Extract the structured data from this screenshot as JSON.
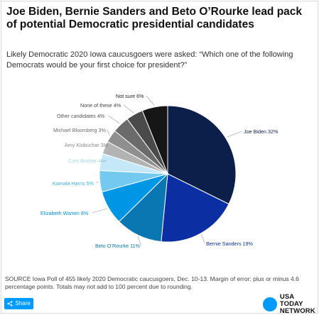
{
  "title": "Joe Biden, Bernie Sanders and Beto O’Rourke lead pack of potential Democratic presidential candidates",
  "subtitle": "Likely Democratic 2020 Iowa caucusgoers were asked: “Which one of the following Democrats would be your first choice for president?”",
  "source": "SOURCE Iowa Poll of 455 likely 2020 Democratic caucusgoers, Dec. 10-13. Margin of error: plus or minus 4.6 percentage points. Totals may not add to 100 percent due to rounding.",
  "share": {
    "label": "Share",
    "icon": "share-icon"
  },
  "brand": {
    "line1": "USA TODAY",
    "line2": "NETWORK",
    "color": "#009bff"
  },
  "chart_data": {
    "type": "pie",
    "title": "",
    "start": "12 o'clock, clockwise",
    "slices": [
      {
        "label": "Joe Biden",
        "value": 32,
        "display": "Joe Biden 32%",
        "color": "#0c1f4a"
      },
      {
        "label": "Bernie Sanders",
        "value": 19,
        "display": "Bernie Sanders 19%",
        "color": "#0b2fa3"
      },
      {
        "label": "Beto O’Rourke",
        "value": 11,
        "display": "Beto O’Rourke 11%",
        "color": "#0a77b3"
      },
      {
        "label": "Elizabeth Warren",
        "value": 8,
        "display": "Elizabeth Warren 8%",
        "color": "#0096e6"
      },
      {
        "label": "Kamala Harris",
        "value": 5,
        "display": "Kamala Harris 5%",
        "color": "#74c9f0"
      },
      {
        "label": "Cory Booker",
        "value": 4,
        "display": "Cory Booker 4%",
        "color": "#c5e8f8"
      },
      {
        "label": "Amy Klobuchar",
        "value": 3,
        "display": "Amy Klobuchar 3%",
        "color": "#b3b3b3"
      },
      {
        "label": "Michael Bloomberg",
        "value": 3,
        "display": "Michael Bloomberg 3%",
        "color": "#8f8f8f"
      },
      {
        "label": "Other candidates",
        "value": 4,
        "display": "Other candidates 4%",
        "color": "#6b6b6b"
      },
      {
        "label": "None of these",
        "value": 4,
        "display": "None of these 4%",
        "color": "#4a4a4a"
      },
      {
        "label": "Not sure",
        "value": 6,
        "display": "Not sure 6%",
        "color": "#161616"
      }
    ],
    "label_colors": {
      "Joe Biden": "#0c1f4a",
      "Bernie Sanders": "#0b2fa3",
      "Beto O’Rourke": "#0a77b3",
      "Elizabeth Warren": "#0096e6",
      "Kamala Harris": "#3fb0e6",
      "Cory Booker": "#9fd6f2",
      "Amy Klobuchar": "#8a8a8a",
      "Michael Bloomberg": "#6b6b6b",
      "Other candidates": "#555555",
      "None of these": "#444444",
      "Not sure": "#222222"
    }
  }
}
